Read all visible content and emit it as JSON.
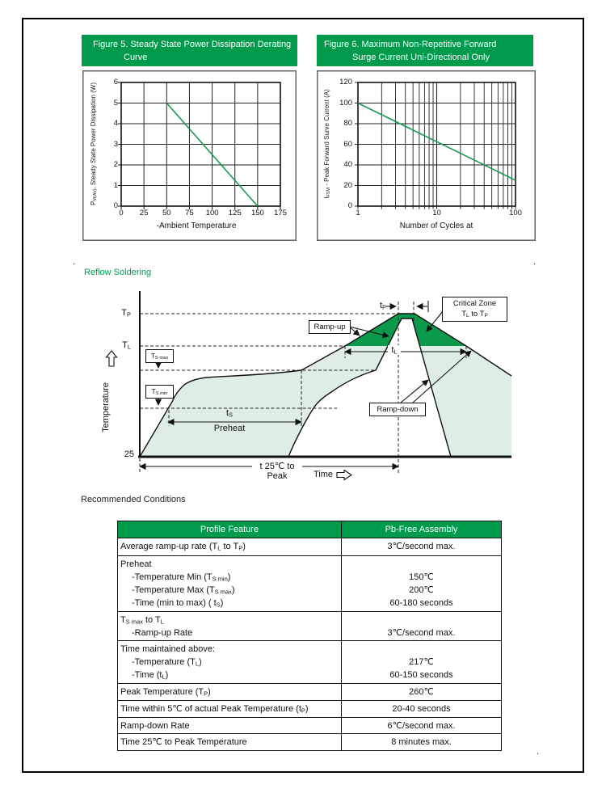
{
  "artifacts": {
    "dot": "."
  },
  "colors": {
    "brand_green": "#009a4d",
    "critical_zone_green": "#0b9a4b",
    "profile_fill_green": "#dfeee4",
    "curve_green": "#169a52"
  },
  "figure5": {
    "title_line1": "Figure 5. Steady State Power Dissipation Derating",
    "title_line2": "Curve"
  },
  "figure6": {
    "title_line1": "Figure 6. Maximum Non-Repetitive Forward",
    "title_line2": "Surge Current Uni-Directional Only"
  },
  "chart_data": [
    {
      "type": "line",
      "title": "Figure 5. Steady State Power Dissipation Derating Curve",
      "xlabel": "-Ambient Temperature",
      "ylabel": "PM(AV), Steady State Power Dissipation (W)",
      "ylabel_rich": [
        {
          "t": "P"
        },
        {
          "s": "M(AV)"
        },
        {
          "t": ", Steady State Power Dissipation (W)"
        }
      ],
      "xlim": [
        0,
        175
      ],
      "ylim": [
        0,
        6
      ],
      "xticks": [
        "0",
        "25",
        "50",
        "75",
        "100",
        "125",
        "150",
        "175"
      ],
      "yticks_top_to_bottom": [
        "6",
        "5",
        "4",
        "3",
        "2",
        "1",
        "0"
      ],
      "grid": true,
      "line_color": "#169a52",
      "series": [
        {
          "name": "derating-line",
          "x": [
            50,
            150
          ],
          "y": [
            5,
            0
          ]
        }
      ]
    },
    {
      "type": "line",
      "title": "Figure 6. Maximum Non-Repetitive Forward Surge Current Uni-Directional Only",
      "xlabel": "Number of Cycles at",
      "ylabel": "IFSM - Peak Forward Surve Current (A)",
      "ylabel_rich": [
        {
          "t": "I"
        },
        {
          "s": "FSM"
        },
        {
          "t": " - Peak Forward Surve Current (A)"
        }
      ],
      "xscale": "log",
      "xlim": [
        1,
        100
      ],
      "ylim": [
        0,
        120
      ],
      "xticks": [
        "1",
        "10",
        "100"
      ],
      "yticks_top_to_bottom": [
        "120",
        "100",
        "80",
        "60",
        "40",
        "20",
        "0"
      ],
      "grid": true,
      "line_color": "#169a52",
      "series": [
        {
          "name": "surge-line",
          "x": [
            1,
            100
          ],
          "y": [
            100,
            25
          ]
        }
      ]
    }
  ],
  "reflow": {
    "heading": "Reflow Soldering",
    "y_axis_label": "Temperature",
    "x_axis_label": "Time",
    "origin_value": "25",
    "tp": [
      {
        "t": "T"
      },
      {
        "s": "P"
      }
    ],
    "tl": [
      {
        "t": "T"
      },
      {
        "s": "L"
      }
    ],
    "tsmax": [
      {
        "t": "T"
      },
      {
        "s": "S max"
      }
    ],
    "tsmin": [
      {
        "t": "T"
      },
      {
        "s": "S min"
      }
    ],
    "tp_time": [
      {
        "t": "t"
      },
      {
        "s": "P"
      }
    ],
    "tl_time": [
      {
        "t": "t"
      },
      {
        "s": "L"
      }
    ],
    "ts_time": [
      {
        "t": "t"
      },
      {
        "s": "S"
      }
    ],
    "preheat": "Preheat",
    "ramp_up": "Ramp-up",
    "ramp_down": "Ramp-down",
    "critical_zone_line1": "Critical Zone",
    "critical_zone_line2": [
      {
        "t": "T"
      },
      {
        "s": "L"
      },
      {
        "t": " to T"
      },
      {
        "s": "P"
      }
    ],
    "t25_to_peak": "t 25℃ to Peak"
  },
  "table": {
    "heading": "Recommended Conditions",
    "col1": "Profile Feature",
    "col2": "Pb-Free Assembly",
    "rows": [
      {
        "feature": [
          [
            {
              "t": "Average ramp-up rate (T"
            },
            {
              "s": "L"
            },
            {
              "t": " to T"
            },
            {
              "s": "P"
            },
            {
              "t": ")"
            }
          ]
        ],
        "values": [
          "3℃/second max."
        ]
      },
      {
        "feature": [
          [
            {
              "t": "Preheat"
            }
          ],
          [
            {
              "t": "-Temperature Min (T"
            },
            {
              "s": "S min"
            },
            {
              "t": ")"
            }
          ],
          [
            {
              "t": "-Temperature Max (T"
            },
            {
              "s": "S max"
            },
            {
              "t": ")"
            }
          ],
          [
            {
              "t": "-Time (min to max) ( t"
            },
            {
              "s": "S"
            },
            {
              "t": ")"
            }
          ]
        ],
        "values": [
          "",
          "150℃",
          "200℃",
          "60-180 seconds"
        ]
      },
      {
        "feature": [
          [
            {
              "t": "T"
            },
            {
              "s": "S max"
            },
            {
              "t": " to T"
            },
            {
              "s": "L"
            }
          ],
          [
            {
              "t": "-Ramp-up Rate"
            }
          ]
        ],
        "values": [
          "",
          "3℃/second max."
        ]
      },
      {
        "feature": [
          [
            {
              "t": "Time maintained above:"
            }
          ],
          [
            {
              "t": "-Temperature (T"
            },
            {
              "s": "L"
            },
            {
              "t": ")"
            }
          ],
          [
            {
              "t": "-Time (t"
            },
            {
              "s": "L"
            },
            {
              "t": ")"
            }
          ]
        ],
        "values": [
          "",
          "217℃",
          "60-150 seconds"
        ]
      },
      {
        "feature": [
          [
            {
              "t": "Peak Temperature (T"
            },
            {
              "s": "P"
            },
            {
              "t": ")"
            }
          ]
        ],
        "values": [
          "260℃"
        ]
      },
      {
        "feature": [
          [
            {
              "t": "Time within 5℃ of actual Peak Temperature (t"
            },
            {
              "s": "P"
            },
            {
              "t": ")"
            }
          ]
        ],
        "values": [
          "20-40 seconds"
        ]
      },
      {
        "feature": [
          [
            {
              "t": "Ramp-down Rate"
            }
          ]
        ],
        "values": [
          "6℃/second max."
        ]
      },
      {
        "feature": [
          [
            {
              "t": "Time 25℃ to Peak Temperature"
            }
          ]
        ],
        "values": [
          "8 minutes max."
        ]
      }
    ]
  }
}
